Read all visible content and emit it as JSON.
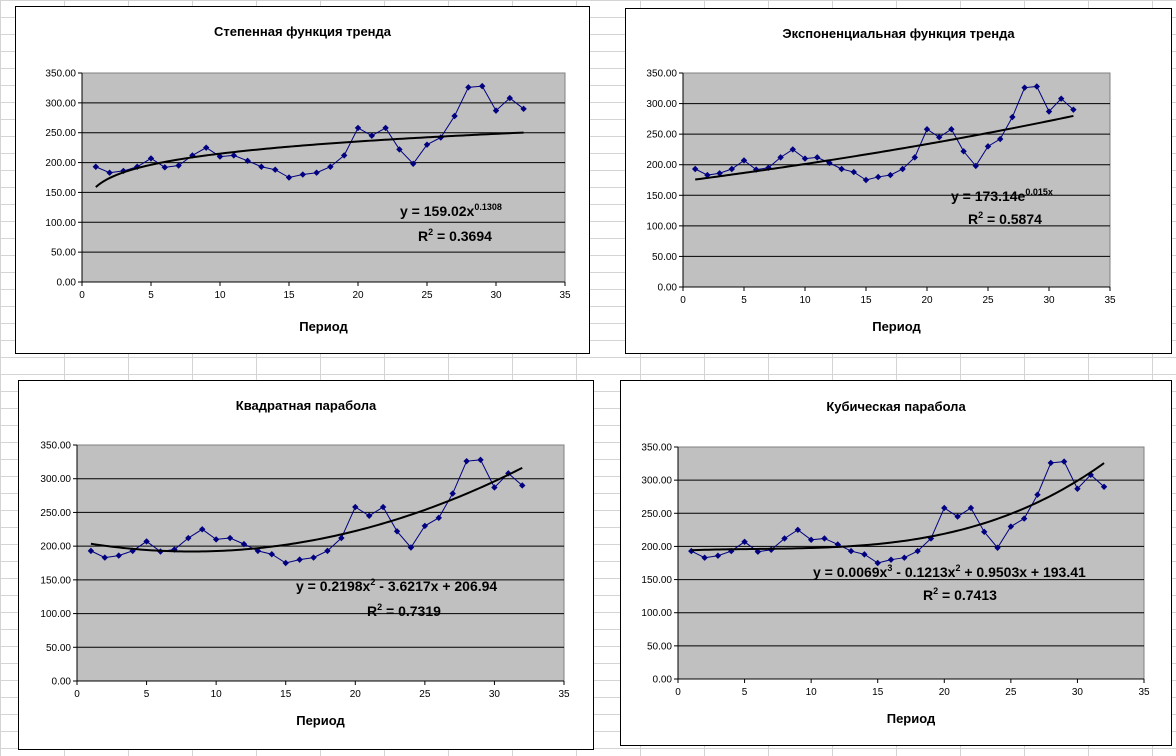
{
  "chart_data": [
    {
      "type": "scatter",
      "title": "Степенная функция тренда",
      "xlabel": "Период",
      "ylabel": "",
      "xlim": [
        0,
        35
      ],
      "ylim": [
        0,
        350
      ],
      "xticks": [
        "0",
        "5",
        "10",
        "15",
        "20",
        "25",
        "30",
        "35"
      ],
      "yticks": [
        "0.00",
        "50.00",
        "100.00",
        "150.00",
        "200.00",
        "250.00",
        "300.00",
        "350.00"
      ],
      "grid": "horizontal",
      "plot_background": "#c0c0c0",
      "series_color": "#000080",
      "trend_color": "#000000",
      "series": [
        {
          "x": [
            1,
            2,
            3,
            4,
            5,
            6,
            7,
            8,
            9,
            10,
            11,
            12,
            13,
            14,
            15,
            16,
            17,
            18,
            19,
            20,
            21,
            22,
            23,
            24,
            25,
            26,
            27,
            28,
            29,
            30,
            31,
            32
          ],
          "values": [
            193,
            183,
            186,
            193,
            207,
            192,
            195,
            212,
            225,
            210,
            212,
            203,
            193,
            188,
            175,
            180,
            183,
            193,
            212,
            258,
            245,
            258,
            222,
            198,
            230,
            242,
            278,
            326,
            328,
            287,
            308,
            290
          ]
        }
      ],
      "trend": {
        "kind": "power",
        "a": 159.02,
        "b": 0.1308,
        "x_from": 1,
        "x_to": 32
      },
      "equation": {
        "main": "y = 159.02x",
        "sup": "0.1308",
        "tail": "",
        "r2_prefix": "R",
        "r2_sup": "2",
        "r2_value": " = 0.3694"
      }
    },
    {
      "type": "scatter",
      "title": "Экспоненциальная функция тренда",
      "xlabel": "Период",
      "ylabel": "",
      "xlim": [
        0,
        35
      ],
      "ylim": [
        0,
        350
      ],
      "xticks": [
        "0",
        "5",
        "10",
        "15",
        "20",
        "25",
        "30",
        "35"
      ],
      "yticks": [
        "0.00",
        "50.00",
        "100.00",
        "150.00",
        "200.00",
        "250.00",
        "300.00",
        "350.00"
      ],
      "grid": "horizontal",
      "plot_background": "#c0c0c0",
      "series_color": "#000080",
      "trend_color": "#000000",
      "series": [
        {
          "x": [
            1,
            2,
            3,
            4,
            5,
            6,
            7,
            8,
            9,
            10,
            11,
            12,
            13,
            14,
            15,
            16,
            17,
            18,
            19,
            20,
            21,
            22,
            23,
            24,
            25,
            26,
            27,
            28,
            29,
            30,
            31,
            32
          ],
          "values": [
            193,
            183,
            186,
            193,
            207,
            192,
            195,
            212,
            225,
            210,
            212,
            203,
            193,
            188,
            175,
            180,
            183,
            193,
            212,
            258,
            245,
            258,
            222,
            198,
            230,
            242,
            278,
            326,
            328,
            287,
            308,
            290
          ]
        }
      ],
      "trend": {
        "kind": "exponential",
        "a": 173.14,
        "b": 0.015,
        "x_from": 1,
        "x_to": 32
      },
      "equation": {
        "main": "y = 173.14e",
        "sup": "0.015x",
        "tail": "",
        "r2_prefix": "R",
        "r2_sup": "2",
        "r2_value": " = 0.5874"
      }
    },
    {
      "type": "scatter",
      "title": "Квадратная парабола",
      "xlabel": "Период",
      "ylabel": "",
      "xlim": [
        0,
        35
      ],
      "ylim": [
        0,
        350
      ],
      "xticks": [
        "0",
        "5",
        "10",
        "15",
        "20",
        "25",
        "30",
        "35"
      ],
      "yticks": [
        "0.00",
        "50.00",
        "100.00",
        "150.00",
        "200.00",
        "250.00",
        "300.00",
        "350.00"
      ],
      "grid": "horizontal",
      "plot_background": "#c0c0c0",
      "series_color": "#000080",
      "trend_color": "#000000",
      "series": [
        {
          "x": [
            1,
            2,
            3,
            4,
            5,
            6,
            7,
            8,
            9,
            10,
            11,
            12,
            13,
            14,
            15,
            16,
            17,
            18,
            19,
            20,
            21,
            22,
            23,
            24,
            25,
            26,
            27,
            28,
            29,
            30,
            31,
            32
          ],
          "values": [
            193,
            183,
            186,
            193,
            207,
            192,
            195,
            212,
            225,
            210,
            212,
            203,
            193,
            188,
            175,
            180,
            183,
            193,
            212,
            258,
            245,
            258,
            222,
            198,
            230,
            242,
            278,
            326,
            328,
            287,
            308,
            290
          ]
        }
      ],
      "trend": {
        "kind": "poly",
        "coef": [
          206.94,
          -3.6217,
          0.2198
        ],
        "x_from": 1,
        "x_to": 32
      },
      "equation": {
        "main": "y = 0.2198x",
        "sup": "2",
        "tail": " - 3.6217x + 206.94",
        "r2_prefix": "R",
        "r2_sup": "2",
        "r2_value": " = 0.7319"
      }
    },
    {
      "type": "scatter",
      "title": "Кубическая парабола",
      "xlabel": "Период",
      "ylabel": "",
      "xlim": [
        0,
        35
      ],
      "ylim": [
        0,
        350
      ],
      "xticks": [
        "0",
        "5",
        "10",
        "15",
        "20",
        "25",
        "30",
        "35"
      ],
      "yticks": [
        "0.00",
        "50.00",
        "100.00",
        "150.00",
        "200.00",
        "250.00",
        "300.00",
        "350.00"
      ],
      "grid": "horizontal",
      "plot_background": "#c0c0c0",
      "series_color": "#000080",
      "trend_color": "#000000",
      "series": [
        {
          "x": [
            1,
            2,
            3,
            4,
            5,
            6,
            7,
            8,
            9,
            10,
            11,
            12,
            13,
            14,
            15,
            16,
            17,
            18,
            19,
            20,
            21,
            22,
            23,
            24,
            25,
            26,
            27,
            28,
            29,
            30,
            31,
            32
          ],
          "values": [
            193,
            183,
            186,
            193,
            207,
            192,
            195,
            212,
            225,
            210,
            212,
            203,
            193,
            188,
            175,
            180,
            183,
            193,
            212,
            258,
            245,
            258,
            222,
            198,
            230,
            242,
            278,
            326,
            328,
            287,
            308,
            290
          ]
        }
      ],
      "trend": {
        "kind": "poly",
        "coef": [
          193.41,
          0.9503,
          -0.1213,
          0.0069
        ],
        "x_from": 1,
        "x_to": 32
      },
      "equation": {
        "main": "y = 0.0069x",
        "sup": "3",
        "tail": " - 0.1213x",
        "sup2": "2",
        "tail2": " + 0.9503x + 193.41",
        "r2_prefix": "R",
        "r2_sup": "2",
        "r2_value": " = 0.7413"
      }
    }
  ]
}
